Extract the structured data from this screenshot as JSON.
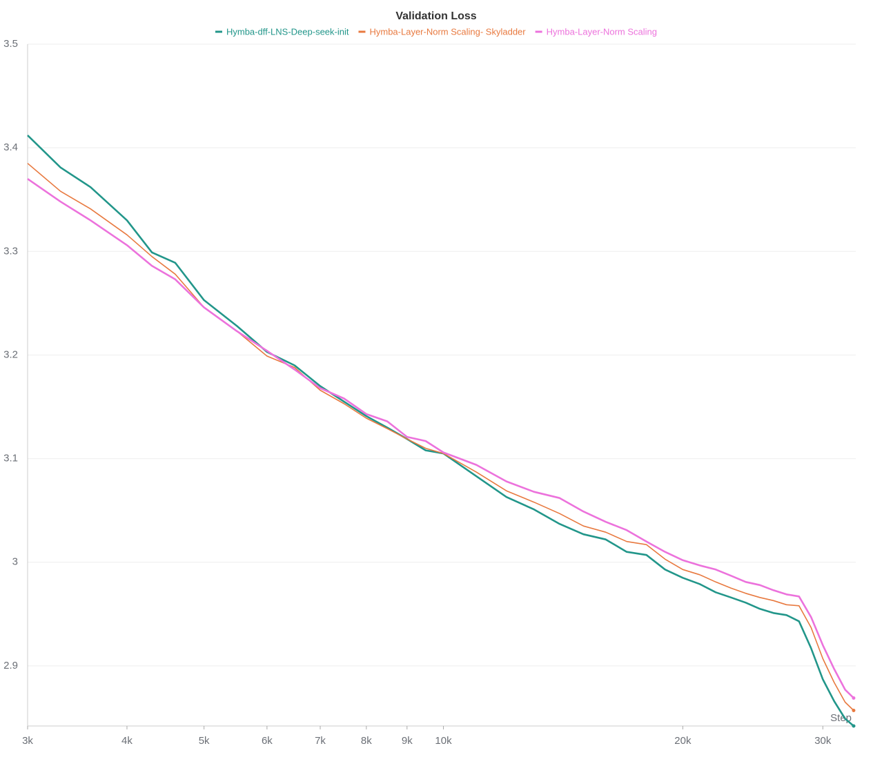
{
  "chart_data": {
    "type": "line",
    "title": "Validation Loss",
    "x_label": "Step",
    "x": [
      3000,
      3300,
      3600,
      4000,
      4300,
      4600,
      5000,
      5500,
      6000,
      6500,
      7000,
      7500,
      8000,
      8500,
      9000,
      9500,
      10000,
      11000,
      12000,
      13000,
      14000,
      15000,
      16000,
      17000,
      18000,
      19000,
      20000,
      21000,
      22000,
      23000,
      24000,
      25000,
      26000,
      27000,
      28000,
      29000,
      30000,
      31000,
      32000,
      32800
    ],
    "series": [
      {
        "name": "Hymba-dff-LNS-Deep-seek-init",
        "color": "#22968a",
        "values": [
          3.412,
          3.381,
          3.362,
          3.33,
          3.299,
          3.289,
          3.253,
          3.228,
          3.203,
          3.19,
          3.17,
          3.155,
          3.141,
          3.13,
          3.119,
          3.108,
          3.105,
          3.083,
          3.063,
          3.051,
          3.037,
          3.027,
          3.022,
          3.01,
          3.007,
          2.993,
          2.985,
          2.979,
          2.971,
          2.966,
          2.961,
          2.955,
          2.951,
          2.949,
          2.943,
          2.917,
          2.887,
          2.866,
          2.849,
          2.842
        ]
      },
      {
        "name": "Hymba-Layer-Norm Scaling- Skyladder",
        "color": "#e8793f",
        "values": [
          3.385,
          3.358,
          3.341,
          3.316,
          3.295,
          3.278,
          3.246,
          3.223,
          3.199,
          3.188,
          3.166,
          3.153,
          3.139,
          3.129,
          3.119,
          3.11,
          3.105,
          3.087,
          3.069,
          3.058,
          3.047,
          3.035,
          3.029,
          3.02,
          3.017,
          3.003,
          2.993,
          2.988,
          2.981,
          2.975,
          2.97,
          2.966,
          2.963,
          2.959,
          2.958,
          2.937,
          2.907,
          2.884,
          2.865,
          2.857
        ]
      },
      {
        "name": "Hymba-Layer-Norm Scaling",
        "color": "#ec72dc",
        "values": [
          3.37,
          3.348,
          3.33,
          3.306,
          3.286,
          3.273,
          3.246,
          3.223,
          3.204,
          3.186,
          3.168,
          3.158,
          3.143,
          3.136,
          3.121,
          3.117,
          3.106,
          3.094,
          3.078,
          3.068,
          3.062,
          3.049,
          3.039,
          3.031,
          3.02,
          3.01,
          3.002,
          2.997,
          2.993,
          2.987,
          2.981,
          2.978,
          2.973,
          2.969,
          2.967,
          2.947,
          2.92,
          2.897,
          2.877,
          2.869
        ]
      }
    ],
    "xlim": [
      3000,
      33000
    ],
    "log_x": true,
    "xticks": [
      {
        "value": 3000,
        "label": "3k"
      },
      {
        "value": 4000,
        "label": "4k"
      },
      {
        "value": 5000,
        "label": "5k"
      },
      {
        "value": 6000,
        "label": "6k"
      },
      {
        "value": 7000,
        "label": "7k"
      },
      {
        "value": 8000,
        "label": "8k"
      },
      {
        "value": 9000,
        "label": "9k"
      },
      {
        "value": 10000,
        "label": "10k"
      },
      {
        "value": 20000,
        "label": "20k"
      },
      {
        "value": 30000,
        "label": "30k"
      }
    ],
    "ylim": [
      2.842,
      3.5
    ],
    "yticks": [
      2.9,
      3,
      3.1,
      3.2,
      3.3,
      3.4,
      3.5
    ],
    "grid": true
  }
}
